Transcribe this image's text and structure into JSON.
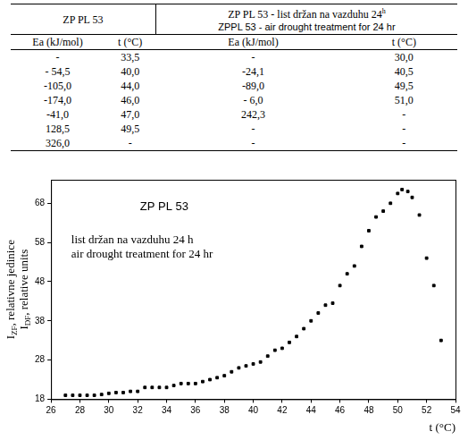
{
  "table": {
    "groups": [
      {
        "lines": [
          "ZP PL 53"
        ]
      },
      {
        "lines": [
          {
            "text": "ZP PL 53 - list držan na vazduhu 24",
            "sup": "h"
          },
          "ZPPL 53 - air drought treatment for 24 hr"
        ]
      }
    ],
    "columns": [
      "Ea (kJ/mol)",
      "t (°C)",
      "Ea (kJ/mol)",
      "t (°C)"
    ],
    "rows": [
      [
        "-",
        "33,5",
        "-",
        "30,0"
      ],
      [
        "- 54,5",
        "40,0",
        "-24,1",
        "40,5"
      ],
      [
        "-105,0",
        "44,0",
        "-89,0",
        "49,5"
      ],
      [
        "-174,0",
        "46,0",
        "- 6,0",
        "51,0"
      ],
      [
        "-41,0",
        "47,0",
        "242,3",
        "-"
      ],
      [
        "128,5",
        "49,5",
        "-",
        "-"
      ],
      [
        "326,0",
        "-",
        "-",
        "-"
      ]
    ]
  },
  "chart_data": {
    "type": "scatter",
    "title": "ZP PL 53",
    "annotations": [
      "list držan na vazduhu 24 h",
      "air drought treatment for 24 hr"
    ],
    "xlabel": "t (°C)",
    "ylabel": [
      {
        "text": "I",
        "sub": "ZF",
        "after": ", relativne jedinice"
      },
      {
        "text": "I",
        "sub": "DF",
        "after": ", relative units"
      }
    ],
    "x": [
      27,
      27.5,
      28,
      28.5,
      29,
      29.5,
      30,
      30.5,
      31,
      31.5,
      32,
      32.5,
      33,
      33.5,
      34,
      34.5,
      35,
      35.5,
      36,
      36.5,
      37,
      37.5,
      38,
      38.5,
      39,
      39.5,
      40,
      40.5,
      41,
      41.5,
      42,
      42.5,
      43,
      43.5,
      44,
      44.5,
      45,
      45.5,
      46,
      46.5,
      47,
      47.5,
      48,
      48.5,
      49,
      49.5,
      50,
      50.3,
      50.7,
      51,
      51.5,
      52,
      52.5,
      53
    ],
    "values": [
      19,
      19,
      19,
      19,
      19,
      19.2,
      19.5,
      19.7,
      19.7,
      20,
      20,
      21,
      21,
      21,
      21,
      21.5,
      22,
      22,
      22,
      22.5,
      23,
      23.5,
      24,
      25,
      26,
      26.5,
      27,
      27.5,
      29,
      30.5,
      31,
      32.5,
      34,
      36,
      38,
      40,
      42,
      42.5,
      47,
      50,
      52,
      57,
      61,
      64.5,
      66,
      68,
      70.5,
      71.5,
      71,
      69.5,
      65,
      54,
      47,
      33
    ],
    "color": "#000000",
    "marker": "square",
    "xlim": [
      26,
      54
    ],
    "xticks": [
      26,
      28,
      30,
      32,
      34,
      36,
      38,
      40,
      42,
      44,
      46,
      48,
      50,
      52,
      54
    ],
    "ylim": [
      18,
      74
    ],
    "yticks": [
      18,
      28,
      38,
      48,
      58,
      68
    ],
    "grid": false
  }
}
